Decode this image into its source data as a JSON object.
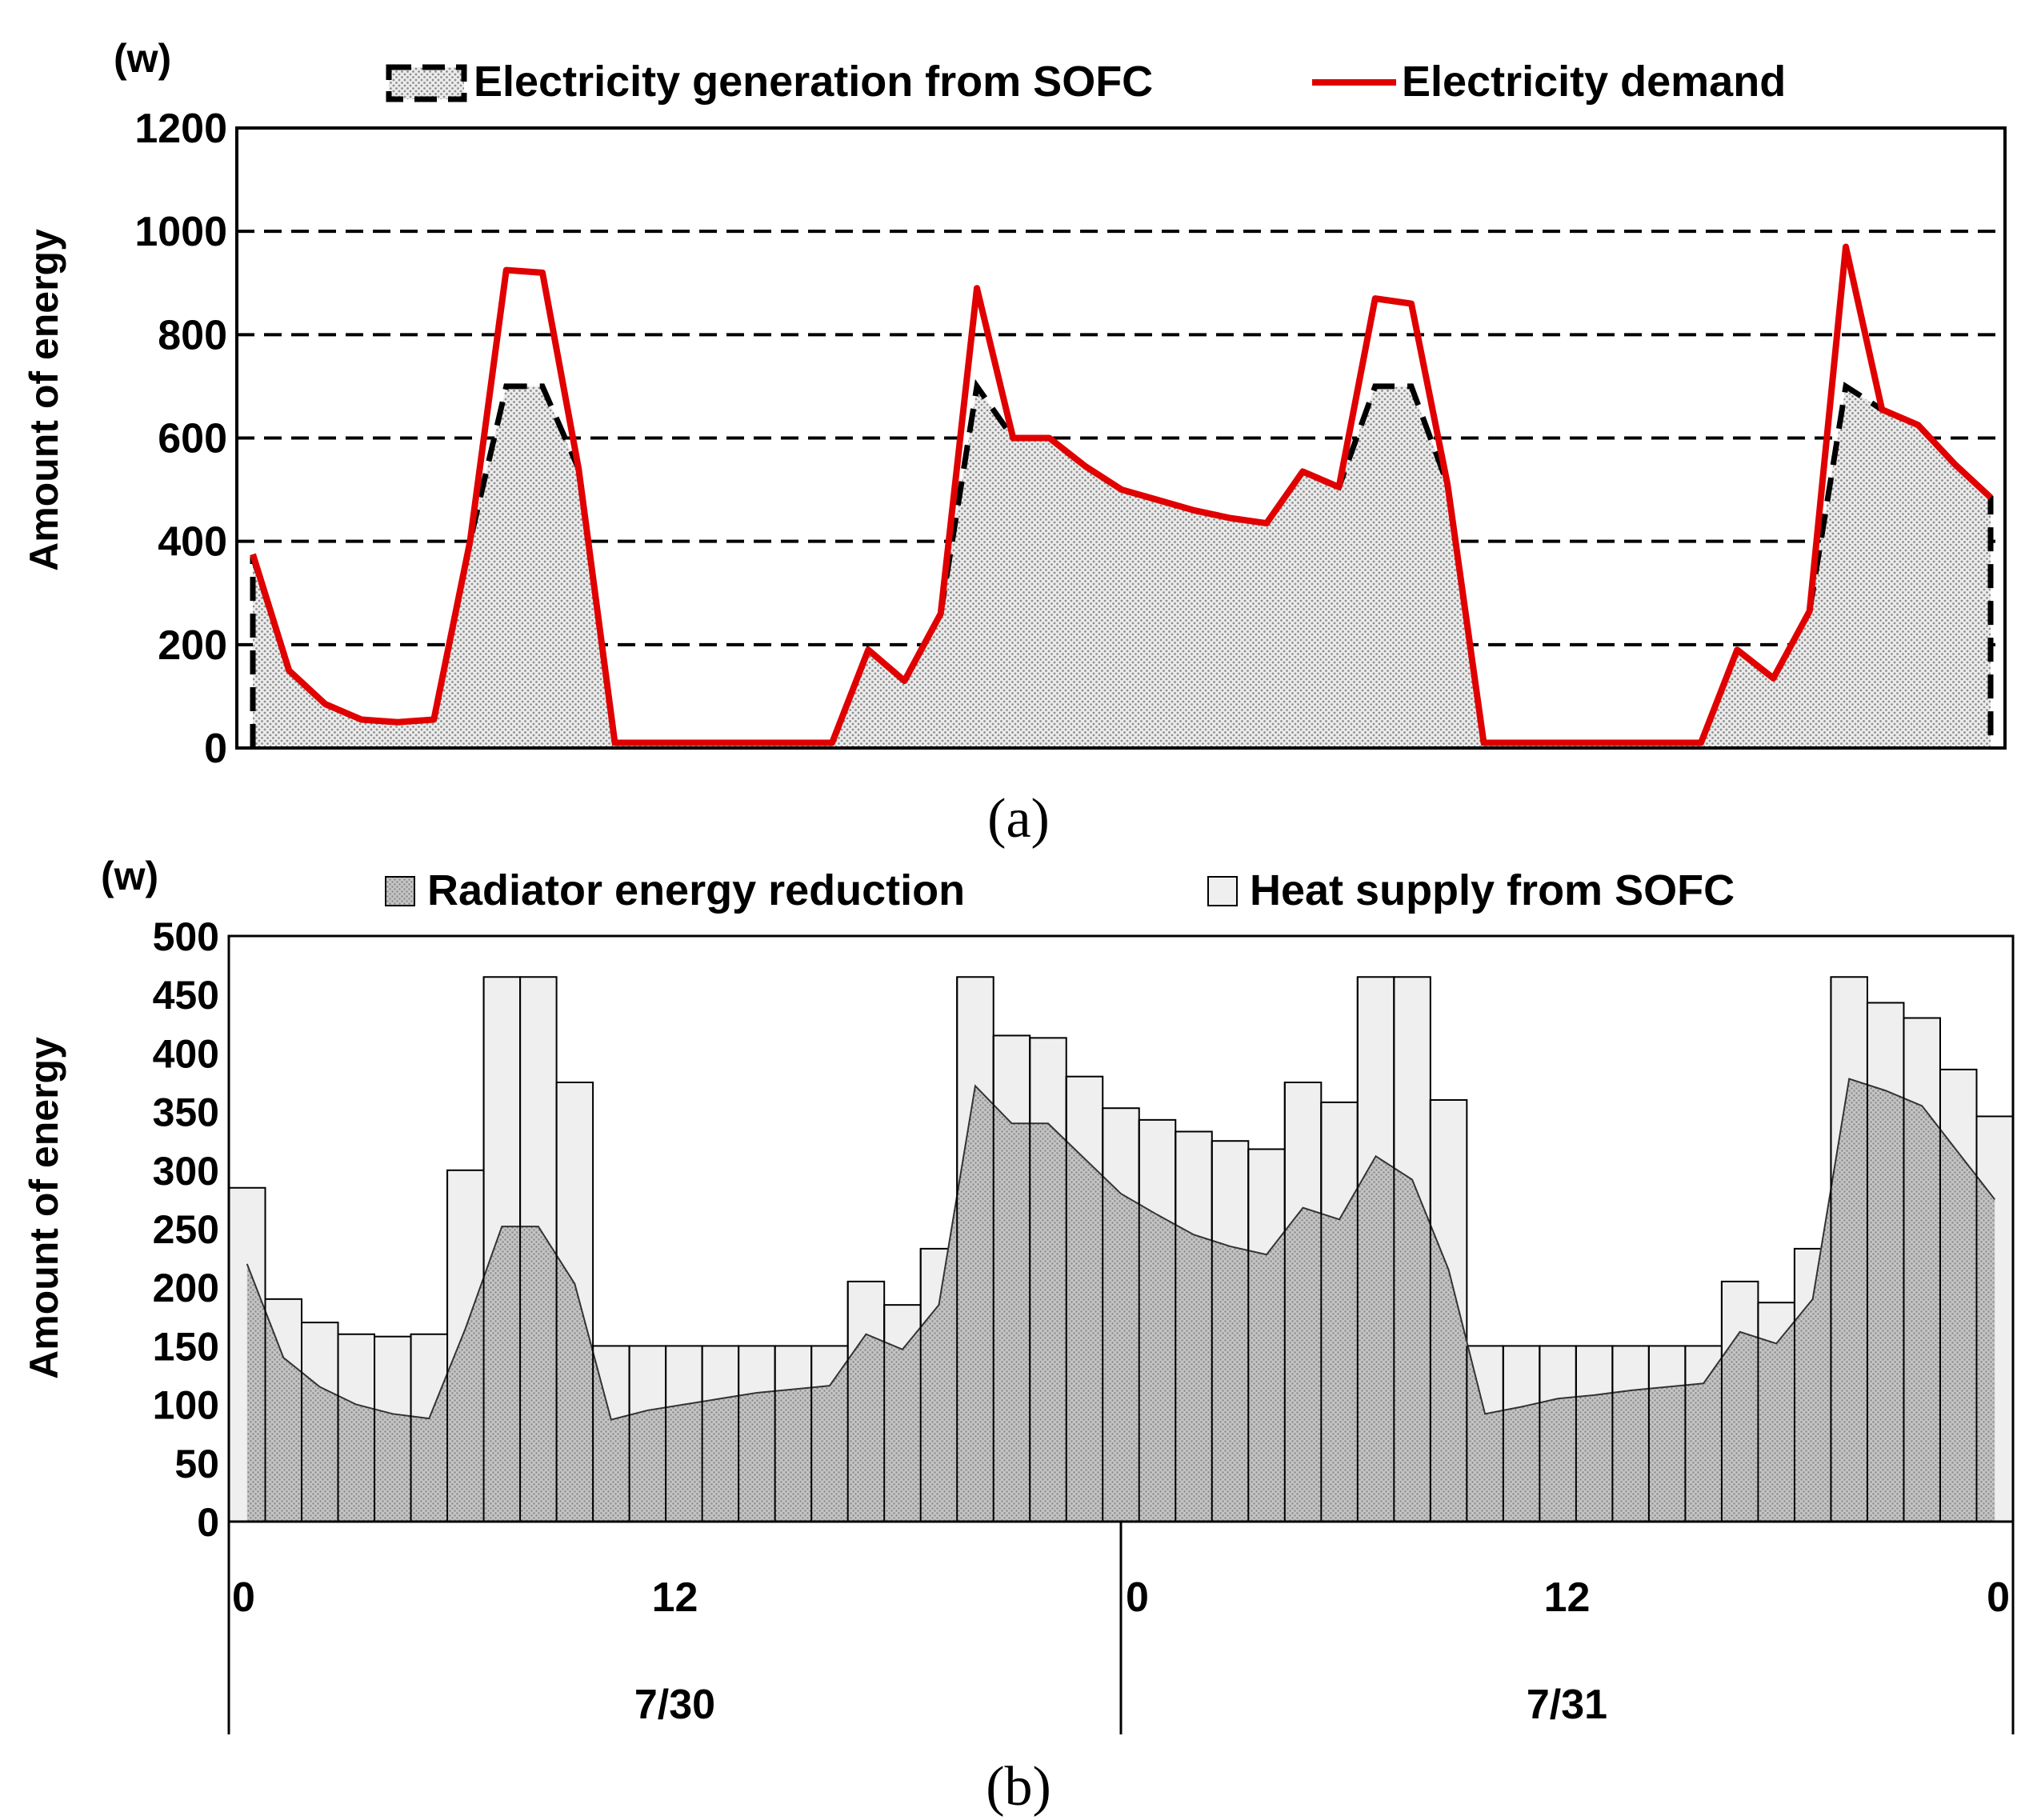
{
  "colors": {
    "demand_line": "#e00000",
    "generation_fill": "#d9d9d9",
    "radiator_fill": "#bdbdbd",
    "heat_fill": "#efefef",
    "axis": "#000000"
  },
  "chart_data": [
    {
      "id": "a",
      "type": "area",
      "panel_label": "(a)",
      "unit_label": "(w)",
      "ylabel": "Amount of energy",
      "xlabel": "",
      "ylim": [
        0,
        1200
      ],
      "yticks": [
        "0",
        "200",
        "400",
        "600",
        "800",
        "1000",
        "1200"
      ],
      "grid": "dashed horizontal",
      "legend": {
        "position": "top",
        "items": [
          "Electricity generation from SOFC",
          "Electricity demand"
        ]
      },
      "x": [
        0,
        1,
        2,
        3,
        4,
        5,
        6,
        7,
        8,
        9,
        10,
        11,
        12,
        13,
        14,
        15,
        16,
        17,
        18,
        19,
        20,
        21,
        22,
        23,
        24,
        25,
        26,
        27,
        28,
        29,
        30,
        31,
        32,
        33,
        34,
        35,
        36,
        37,
        38,
        39,
        40,
        41,
        42,
        43,
        44,
        45,
        46,
        47,
        48
      ],
      "series": [
        {
          "name": "Electricity generation from SOFC",
          "style": "dotted area with dashed black outline",
          "values": [
            370,
            150,
            85,
            55,
            50,
            55,
            400,
            700,
            700,
            540,
            10,
            10,
            10,
            10,
            10,
            10,
            10,
            190,
            130,
            260,
            700,
            600,
            600,
            545,
            500,
            480,
            460,
            445,
            435,
            535,
            505,
            700,
            700,
            510,
            10,
            10,
            10,
            10,
            10,
            10,
            10,
            190,
            135,
            265,
            700,
            655,
            625,
            550,
            485
          ]
        },
        {
          "name": "Electricity demand",
          "style": "solid red line",
          "values": [
            375,
            150,
            85,
            55,
            50,
            55,
            400,
            925,
            920,
            540,
            10,
            10,
            10,
            10,
            10,
            10,
            10,
            190,
            130,
            260,
            890,
            600,
            600,
            545,
            500,
            480,
            460,
            445,
            435,
            535,
            505,
            870,
            860,
            510,
            10,
            10,
            10,
            10,
            10,
            10,
            10,
            190,
            135,
            265,
            970,
            655,
            625,
            550,
            485
          ]
        }
      ]
    },
    {
      "id": "b",
      "type": "bar",
      "panel_label": "(b)",
      "unit_label": "(w)",
      "ylabel": "Amount of energy",
      "xlabel": "",
      "ylim": [
        0,
        500
      ],
      "yticks": [
        "0",
        "50",
        "100",
        "150",
        "200",
        "250",
        "300",
        "350",
        "400",
        "450",
        "500"
      ],
      "grid": "none",
      "legend": {
        "position": "top",
        "items": [
          "Radiator energy reduction",
          "Heat supply from SOFC"
        ]
      },
      "x_tick_labels": [
        {
          "hour": 0,
          "label": "0"
        },
        {
          "hour": 12,
          "label": "12"
        },
        {
          "hour": 24,
          "label": "0"
        },
        {
          "hour": 36,
          "label": "12"
        },
        {
          "hour": 48,
          "label": "0"
        }
      ],
      "x_group_labels": [
        {
          "from": 0,
          "to": 24,
          "label": "7/30"
        },
        {
          "from": 24,
          "to": 48,
          "label": "7/31"
        }
      ],
      "series": [
        {
          "name": "Heat supply from SOFC",
          "style": "light gray bars",
          "values": [
            285,
            190,
            170,
            160,
            158,
            160,
            300,
            465,
            465,
            375,
            150,
            150,
            150,
            150,
            150,
            150,
            150,
            205,
            185,
            233,
            465,
            415,
            413,
            380,
            353,
            343,
            333,
            325,
            318,
            375,
            358,
            465,
            465,
            360,
            150,
            150,
            150,
            150,
            150,
            150,
            150,
            205,
            187,
            233,
            465,
            443,
            430,
            386,
            346
          ]
        },
        {
          "name": "Radiator energy reduction",
          "style": "dotted gray area",
          "values": [
            220,
            140,
            115,
            100,
            92,
            88,
            165,
            252,
            252,
            203,
            87,
            95,
            100,
            105,
            110,
            113,
            116,
            160,
            147,
            185,
            372,
            340,
            340,
            310,
            280,
            262,
            245,
            235,
            228,
            268,
            258,
            312,
            292,
            215,
            92,
            98,
            105,
            108,
            112,
            115,
            118,
            162,
            152,
            190,
            378,
            368,
            355,
            315,
            275
          ]
        }
      ]
    }
  ]
}
